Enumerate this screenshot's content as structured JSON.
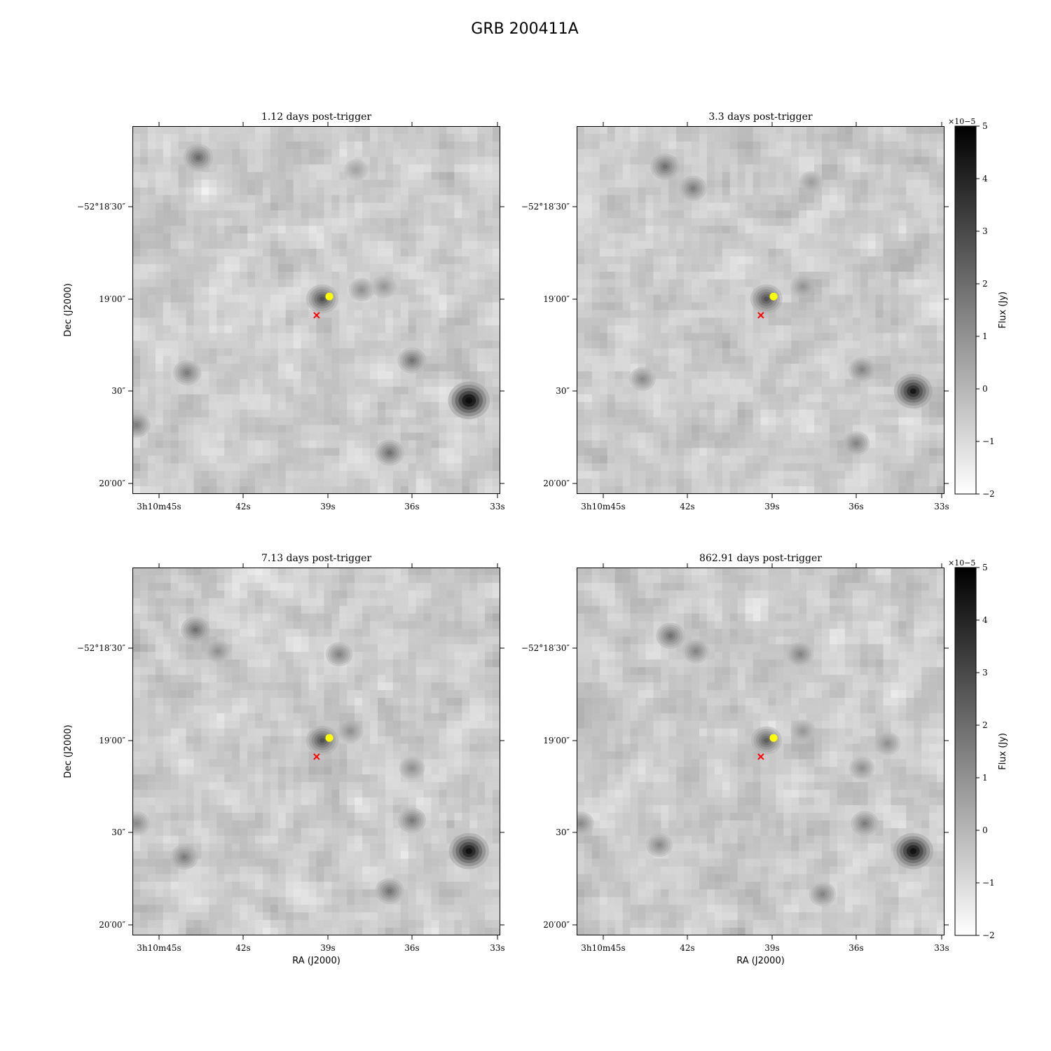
{
  "figure": {
    "title": "GRB 200411A"
  },
  "axes_labels": {
    "ra": "RA (J2000)",
    "dec": "Dec (J2000)"
  },
  "panels": [
    {
      "title": "1.12 days post-trigger"
    },
    {
      "title": "3.3 days post-trigger"
    },
    {
      "title": "7.13 days post-trigger"
    },
    {
      "title": "862.91 days post-trigger"
    }
  ],
  "ticks": {
    "ra": [
      "3h10m45s",
      "42s",
      "39s",
      "36s",
      "33s"
    ],
    "dec": [
      "−52°18′30″",
      "19′00″",
      "30″",
      "20′00″"
    ]
  },
  "colorbar": {
    "label": "Flux (Jy)",
    "multiplier": "×10−5",
    "ticks": [
      5,
      4,
      3,
      2,
      1,
      0,
      -1,
      -2
    ],
    "range": [
      -2,
      5
    ],
    "colormap": "gray_r"
  },
  "markers": {
    "source_color": "#ffff00",
    "x_color": "#ff0000",
    "source": "yellow circle",
    "cross": "red x"
  },
  "chart_data": [
    {
      "type": "heatmap",
      "title": "1.12 days post-trigger",
      "xlabel": "",
      "ylabel": "Dec (J2000)",
      "x_ticks": [
        "3h10m45s",
        "42s",
        "39s",
        "36s",
        "33s"
      ],
      "y_ticks": [
        "−52°18′30″",
        "19′00″",
        "30″",
        "20′00″"
      ],
      "blobs": [
        {
          "ra_s": 43.6,
          "dec_s": 14,
          "amp": 2.8
        },
        {
          "ra_s": 39.2,
          "dec_s": 60,
          "amp": 3.6
        },
        {
          "ra_s": 37.8,
          "dec_s": 57,
          "amp": 1.6
        },
        {
          "ra_s": 37.0,
          "dec_s": 56,
          "amp": 1.4
        },
        {
          "ra_s": 44.0,
          "dec_s": 84,
          "amp": 2.2
        },
        {
          "ra_s": 36.0,
          "dec_s": 80,
          "amp": 2.5
        },
        {
          "ra_s": 34.0,
          "dec_s": 93,
          "amp": 6.5
        },
        {
          "ra_s": 36.8,
          "dec_s": 110,
          "amp": 2.6
        },
        {
          "ra_s": 45.8,
          "dec_s": 101,
          "amp": 2.2
        },
        {
          "ra_s": 38.0,
          "dec_s": 18,
          "amp": 1.0
        }
      ]
    },
    {
      "type": "heatmap",
      "title": "3.3 days post-trigger",
      "xlabel": "",
      "ylabel": "",
      "x_ticks": [
        "3h10m45s",
        "42s",
        "39s",
        "36s",
        "33s"
      ],
      "y_ticks": [
        "−52°18′30″",
        "19′00″",
        "30″",
        "20′00″"
      ],
      "blobs": [
        {
          "ra_s": 42.8,
          "dec_s": 17,
          "amp": 2.6
        },
        {
          "ra_s": 41.8,
          "dec_s": 24,
          "amp": 2.2
        },
        {
          "ra_s": 39.2,
          "dec_s": 60,
          "amp": 3.6
        },
        {
          "ra_s": 37.9,
          "dec_s": 56,
          "amp": 1.5
        },
        {
          "ra_s": 35.8,
          "dec_s": 83,
          "amp": 2.0
        },
        {
          "ra_s": 34.0,
          "dec_s": 90,
          "amp": 5.5
        },
        {
          "ra_s": 43.6,
          "dec_s": 86,
          "amp": 1.8
        },
        {
          "ra_s": 36.0,
          "dec_s": 107,
          "amp": 2.0
        },
        {
          "ra_s": 37.6,
          "dec_s": 22,
          "amp": 1.2
        }
      ]
    },
    {
      "type": "heatmap",
      "title": "7.13 days post-trigger",
      "xlabel": "RA (J2000)",
      "ylabel": "Dec (J2000)",
      "x_ticks": [
        "3h10m45s",
        "42s",
        "39s",
        "36s",
        "33s"
      ],
      "y_ticks": [
        "−52°18′30″",
        "19′00″",
        "30″",
        "20′00″"
      ],
      "blobs": [
        {
          "ra_s": 43.7,
          "dec_s": 24,
          "amp": 2.6
        },
        {
          "ra_s": 42.9,
          "dec_s": 31,
          "amp": 1.6
        },
        {
          "ra_s": 38.6,
          "dec_s": 32,
          "amp": 2.0
        },
        {
          "ra_s": 39.2,
          "dec_s": 60,
          "amp": 3.6
        },
        {
          "ra_s": 38.2,
          "dec_s": 57,
          "amp": 1.6
        },
        {
          "ra_s": 36.0,
          "dec_s": 69,
          "amp": 1.6
        },
        {
          "ra_s": 36.0,
          "dec_s": 86,
          "amp": 2.3
        },
        {
          "ra_s": 34.0,
          "dec_s": 96,
          "amp": 6.0
        },
        {
          "ra_s": 44.1,
          "dec_s": 98,
          "amp": 2.2
        },
        {
          "ra_s": 36.8,
          "dec_s": 109,
          "amp": 2.5
        },
        {
          "ra_s": 45.8,
          "dec_s": 87,
          "amp": 1.8
        }
      ]
    },
    {
      "type": "heatmap",
      "title": "862.91 days post-trigger",
      "xlabel": "RA (J2000)",
      "ylabel": "",
      "x_ticks": [
        "3h10m45s",
        "42s",
        "39s",
        "36s",
        "33s"
      ],
      "y_ticks": [
        "−52°18′30″",
        "19′00″",
        "30″",
        "20′00″"
      ],
      "blobs": [
        {
          "ra_s": 42.6,
          "dec_s": 26,
          "amp": 2.6
        },
        {
          "ra_s": 41.7,
          "dec_s": 31,
          "amp": 2.0
        },
        {
          "ra_s": 38.0,
          "dec_s": 32,
          "amp": 2.0
        },
        {
          "ra_s": 39.2,
          "dec_s": 60,
          "amp": 3.2
        },
        {
          "ra_s": 37.9,
          "dec_s": 57,
          "amp": 1.4
        },
        {
          "ra_s": 35.8,
          "dec_s": 69,
          "amp": 1.6
        },
        {
          "ra_s": 34.9,
          "dec_s": 61,
          "amp": 1.6
        },
        {
          "ra_s": 35.7,
          "dec_s": 87,
          "amp": 2.2
        },
        {
          "ra_s": 34.0,
          "dec_s": 96,
          "amp": 6.0
        },
        {
          "ra_s": 43.0,
          "dec_s": 94,
          "amp": 1.8
        },
        {
          "ra_s": 37.2,
          "dec_s": 110,
          "amp": 2.0
        },
        {
          "ra_s": 45.8,
          "dec_s": 87,
          "amp": 1.8
        }
      ]
    }
  ]
}
